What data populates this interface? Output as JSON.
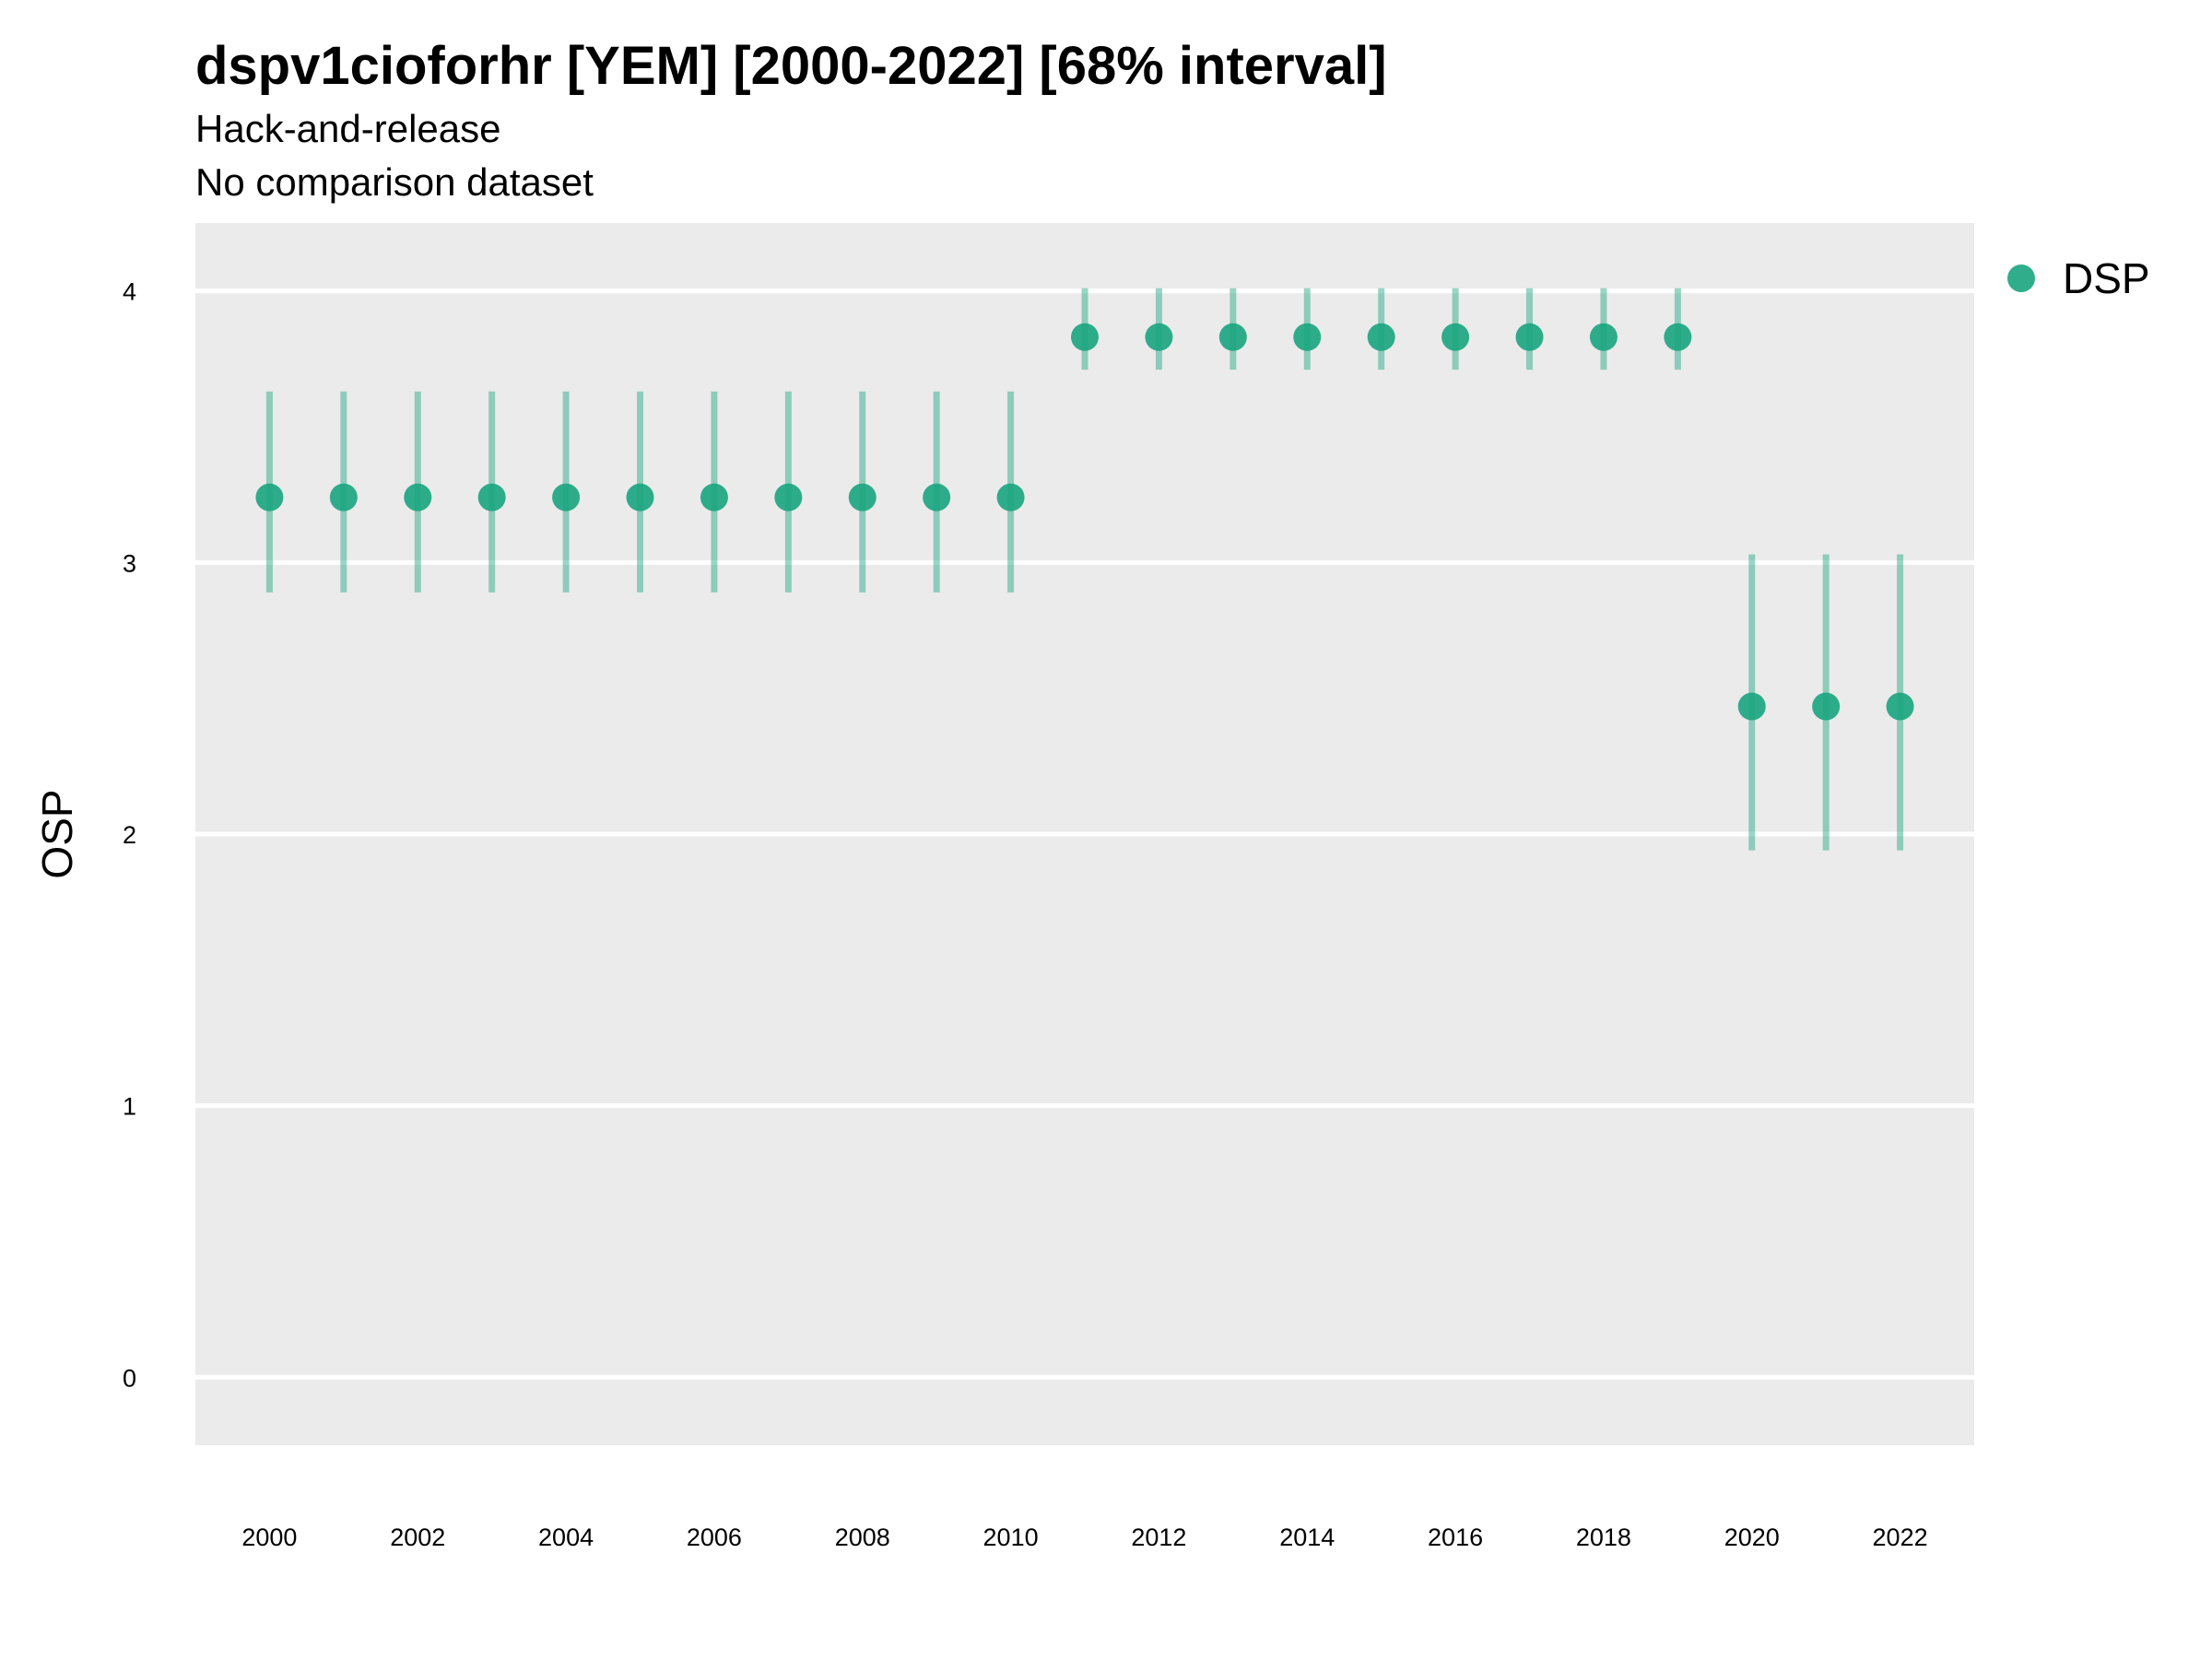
{
  "chart_data": {
    "type": "scatter",
    "title": "dspv1cioforhr [YEM] [2000-2022] [68% interval]",
    "subtitle": [
      "Hack-and-release",
      "No comparison dataset"
    ],
    "xlabel": "",
    "ylabel": "OSP",
    "xlim": [
      1999,
      2023
    ],
    "ylim": [
      -0.25,
      4.25
    ],
    "xticks": [
      2000,
      2002,
      2004,
      2006,
      2008,
      2010,
      2012,
      2014,
      2016,
      2018,
      2020,
      2022
    ],
    "yticks": [
      0,
      1,
      2,
      3,
      4
    ],
    "grid": true,
    "legend_position": "right",
    "series": [
      {
        "name": "DSP",
        "color": "#1aa57f",
        "x": [
          2000,
          2001,
          2002,
          2003,
          2004,
          2005,
          2006,
          2007,
          2008,
          2009,
          2010,
          2011,
          2012,
          2013,
          2014,
          2015,
          2016,
          2017,
          2018,
          2019,
          2020,
          2021,
          2022
        ],
        "y": [
          3.24,
          3.24,
          3.24,
          3.24,
          3.24,
          3.24,
          3.24,
          3.24,
          3.24,
          3.24,
          3.24,
          3.83,
          3.83,
          3.83,
          3.83,
          3.83,
          3.83,
          3.83,
          3.83,
          3.83,
          2.47,
          2.47,
          2.47
        ],
        "lower": [
          2.89,
          2.89,
          2.89,
          2.89,
          2.89,
          2.89,
          2.89,
          2.89,
          2.89,
          2.89,
          2.89,
          3.71,
          3.71,
          3.71,
          3.71,
          3.71,
          3.71,
          3.71,
          3.71,
          3.71,
          1.94,
          1.94,
          1.94
        ],
        "upper": [
          3.63,
          3.63,
          3.63,
          3.63,
          3.63,
          3.63,
          3.63,
          3.63,
          3.63,
          3.63,
          3.63,
          4.01,
          4.01,
          4.01,
          4.01,
          4.01,
          4.01,
          4.01,
          4.01,
          4.01,
          3.03,
          3.03,
          3.03
        ]
      }
    ]
  }
}
